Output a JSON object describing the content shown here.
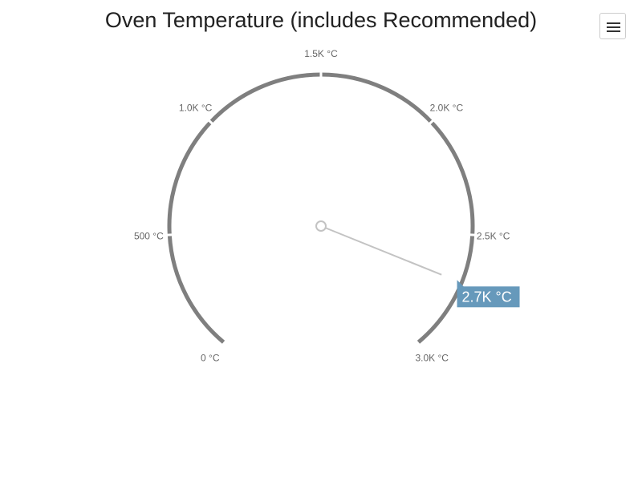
{
  "chart_data": {
    "type": "gauge",
    "title": "Oven Temperature (includes Recommended)",
    "unit": "°C",
    "min": 0,
    "max": 3000,
    "value": 2700,
    "value_label": "2.7K °C",
    "ticks": [
      {
        "value": 0,
        "label": "0 °C"
      },
      {
        "value": 500,
        "label": "500 °C"
      },
      {
        "value": 1000,
        "label": "1.0K °C"
      },
      {
        "value": 1500,
        "label": "1.5K °C"
      },
      {
        "value": 2000,
        "label": "2.0K °C"
      },
      {
        "value": 2500,
        "label": "2.5K °C"
      },
      {
        "value": 3000,
        "label": "3.0K °C"
      }
    ],
    "colors": {
      "band": "#7f7f7f",
      "needle": "#c3c3c3",
      "value_label_bg": "#6699bb"
    }
  },
  "toolbar": {
    "menu_icon": "hamburger-menu-icon"
  }
}
